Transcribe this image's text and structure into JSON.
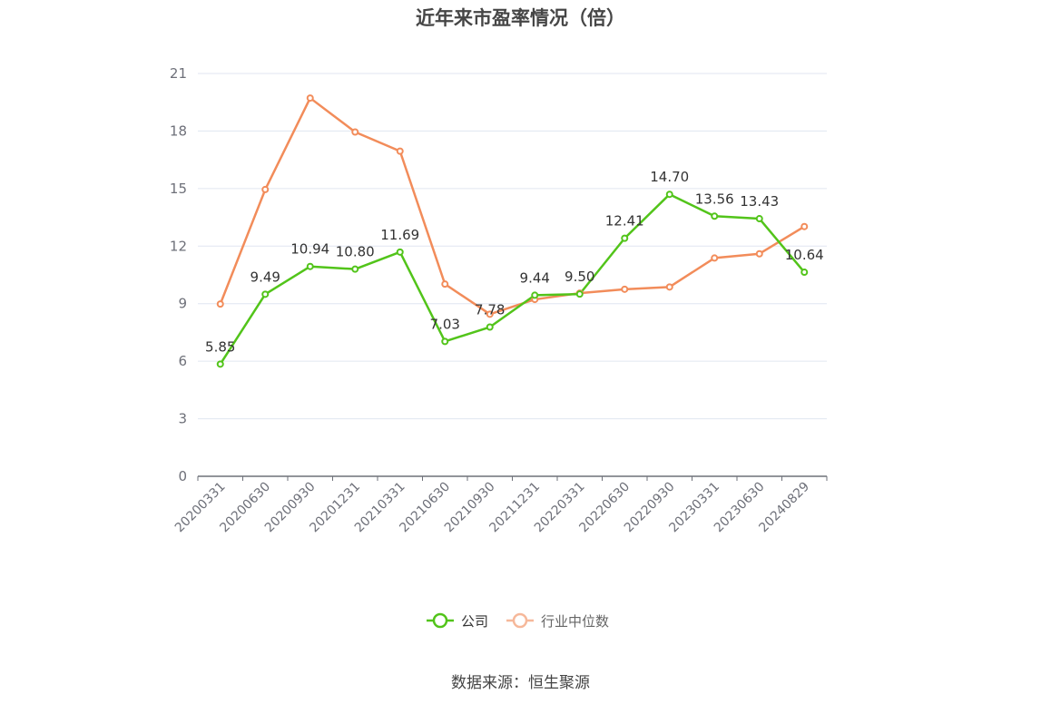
{
  "chart_data": {
    "type": "line",
    "title": "近年来市盈率情况（倍）",
    "categories": [
      "20200331",
      "20200630",
      "20200930",
      "20201231",
      "20210331",
      "20210630",
      "20210930",
      "20211231",
      "20220331",
      "20220630",
      "20220930",
      "20230331",
      "20230630",
      "20240829"
    ],
    "ylim": [
      0,
      21
    ],
    "yticks": [
      0,
      3,
      6,
      9,
      12,
      15,
      18,
      21
    ],
    "grid": true,
    "legend_position": "bottom",
    "series": [
      {
        "name": "公司",
        "color": "#52c41a",
        "values": [
          5.85,
          9.49,
          10.94,
          10.8,
          11.69,
          7.03,
          7.78,
          9.44,
          9.5,
          12.41,
          14.7,
          13.56,
          13.43,
          10.64
        ],
        "labels": [
          "5.85",
          "9.49",
          "10.94",
          "10.80",
          "11.69",
          "7.03",
          "7.78",
          "9.44",
          "9.50",
          "12.41",
          "14.70",
          "13.56",
          "13.43",
          "10.64"
        ]
      },
      {
        "name": "行业中位数",
        "color": "#f28c5a",
        "values": [
          8.98,
          14.95,
          19.72,
          17.95,
          16.95,
          10.02,
          8.45,
          9.22,
          9.55,
          9.75,
          9.87,
          11.38,
          11.6,
          13.02
        ]
      }
    ]
  },
  "source": "数据来源：恒生聚源"
}
